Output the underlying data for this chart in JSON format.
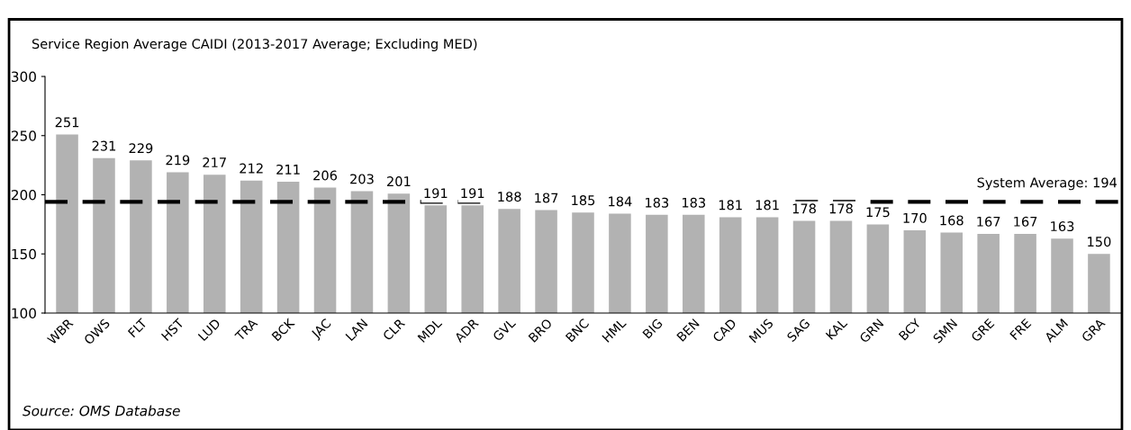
{
  "chart_data": {
    "type": "bar",
    "title": "Service Region Average CAIDI (2013-2017 Average; Excluding MED)",
    "categories": [
      "WBR",
      "OWS",
      "FLT",
      "HST",
      "LUD",
      "TRA",
      "BCK",
      "JAC",
      "LAN",
      "CLR",
      "MDL",
      "ADR",
      "GVL",
      "BRO",
      "BNC",
      "HML",
      "BIG",
      "BEN",
      "CAD",
      "MUS",
      "SAG",
      "KAL",
      "GRN",
      "BCY",
      "SMN",
      "GRE",
      "FRE",
      "ALM",
      "GRA"
    ],
    "values": [
      251,
      231,
      229,
      219,
      217,
      212,
      211,
      206,
      203,
      201,
      191,
      191,
      188,
      187,
      185,
      184,
      183,
      183,
      181,
      181,
      178,
      178,
      175,
      170,
      168,
      167,
      167,
      163,
      150
    ],
    "color": "#b2b2b2",
    "data_labels": true,
    "ylim": [
      100,
      300
    ],
    "yticks": [
      100,
      150,
      200,
      250,
      300
    ],
    "grid": false,
    "ref_lines": [
      {
        "axis": "y",
        "value": 194,
        "label": "System Average: 194",
        "color": "#000000",
        "line_style": "dashed"
      }
    ],
    "annotations": [
      "Source: OMS Database"
    ]
  }
}
